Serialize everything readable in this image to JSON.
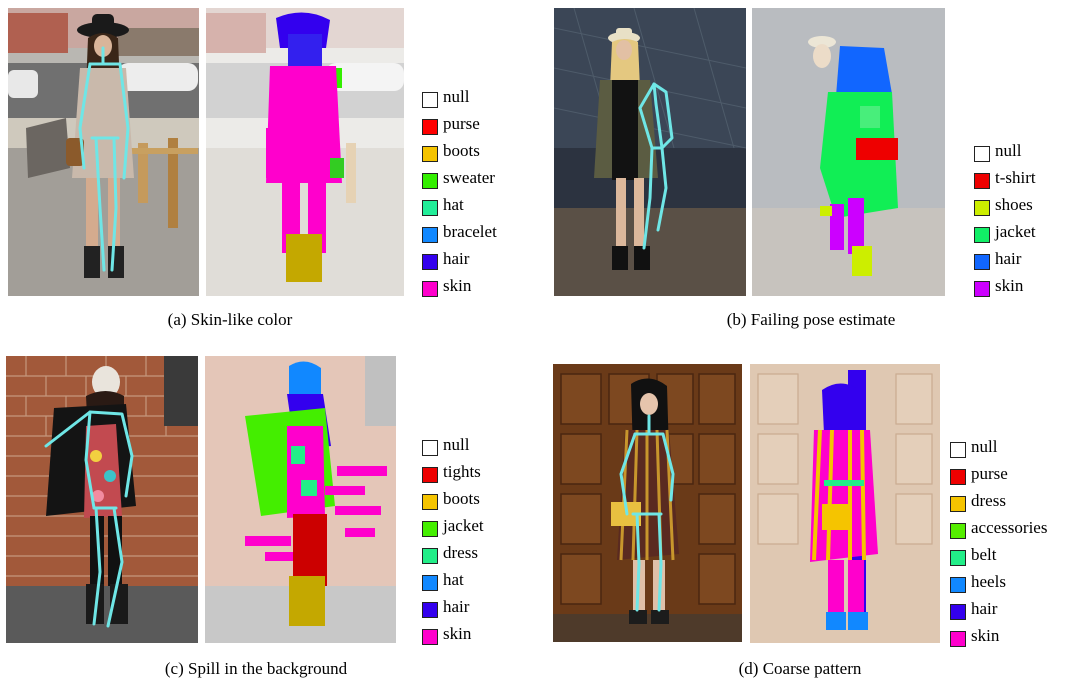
{
  "panels": [
    {
      "caption": "(a) Skin-like color",
      "legend": [
        {
          "label": "null",
          "color": "#ffffff"
        },
        {
          "label": "purse",
          "color": "#ff0000"
        },
        {
          "label": "boots",
          "color": "#f5c400"
        },
        {
          "label": "sweater",
          "color": "#33ee00"
        },
        {
          "label": "hat",
          "color": "#22ee99"
        },
        {
          "label": "bracelet",
          "color": "#1188ff"
        },
        {
          "label": "hair",
          "color": "#3300ee"
        },
        {
          "label": "skin",
          "color": "#ff00cc"
        }
      ]
    },
    {
      "caption": "(b) Failing pose estimate",
      "legend": [
        {
          "label": "null",
          "color": "#ffffff"
        },
        {
          "label": "t-shirt",
          "color": "#ee0000"
        },
        {
          "label": "shoes",
          "color": "#ccee00"
        },
        {
          "label": "jacket",
          "color": "#11ee66"
        },
        {
          "label": "hair",
          "color": "#1166ff"
        },
        {
          "label": "skin",
          "color": "#cc00ff"
        }
      ]
    },
    {
      "caption": "(c) Spill in the background",
      "legend": [
        {
          "label": "null",
          "color": "#ffffff"
        },
        {
          "label": "tights",
          "color": "#ee0000"
        },
        {
          "label": "boots",
          "color": "#f5c400"
        },
        {
          "label": "jacket",
          "color": "#44ee00"
        },
        {
          "label": "dress",
          "color": "#22ee88"
        },
        {
          "label": "hat",
          "color": "#1188ff"
        },
        {
          "label": "hair",
          "color": "#3300ee"
        },
        {
          "label": "skin",
          "color": "#ff00cc"
        }
      ]
    },
    {
      "caption": "(d) Coarse pattern",
      "legend": [
        {
          "label": "null",
          "color": "#ffffff"
        },
        {
          "label": "purse",
          "color": "#ee0000"
        },
        {
          "label": "dress",
          "color": "#f5c400"
        },
        {
          "label": "accessories",
          "color": "#55ee00"
        },
        {
          "label": "belt",
          "color": "#22ee88"
        },
        {
          "label": "heels",
          "color": "#1188ff"
        },
        {
          "label": "hair",
          "color": "#3300ee"
        },
        {
          "label": "skin",
          "color": "#ff00cc"
        }
      ]
    }
  ]
}
